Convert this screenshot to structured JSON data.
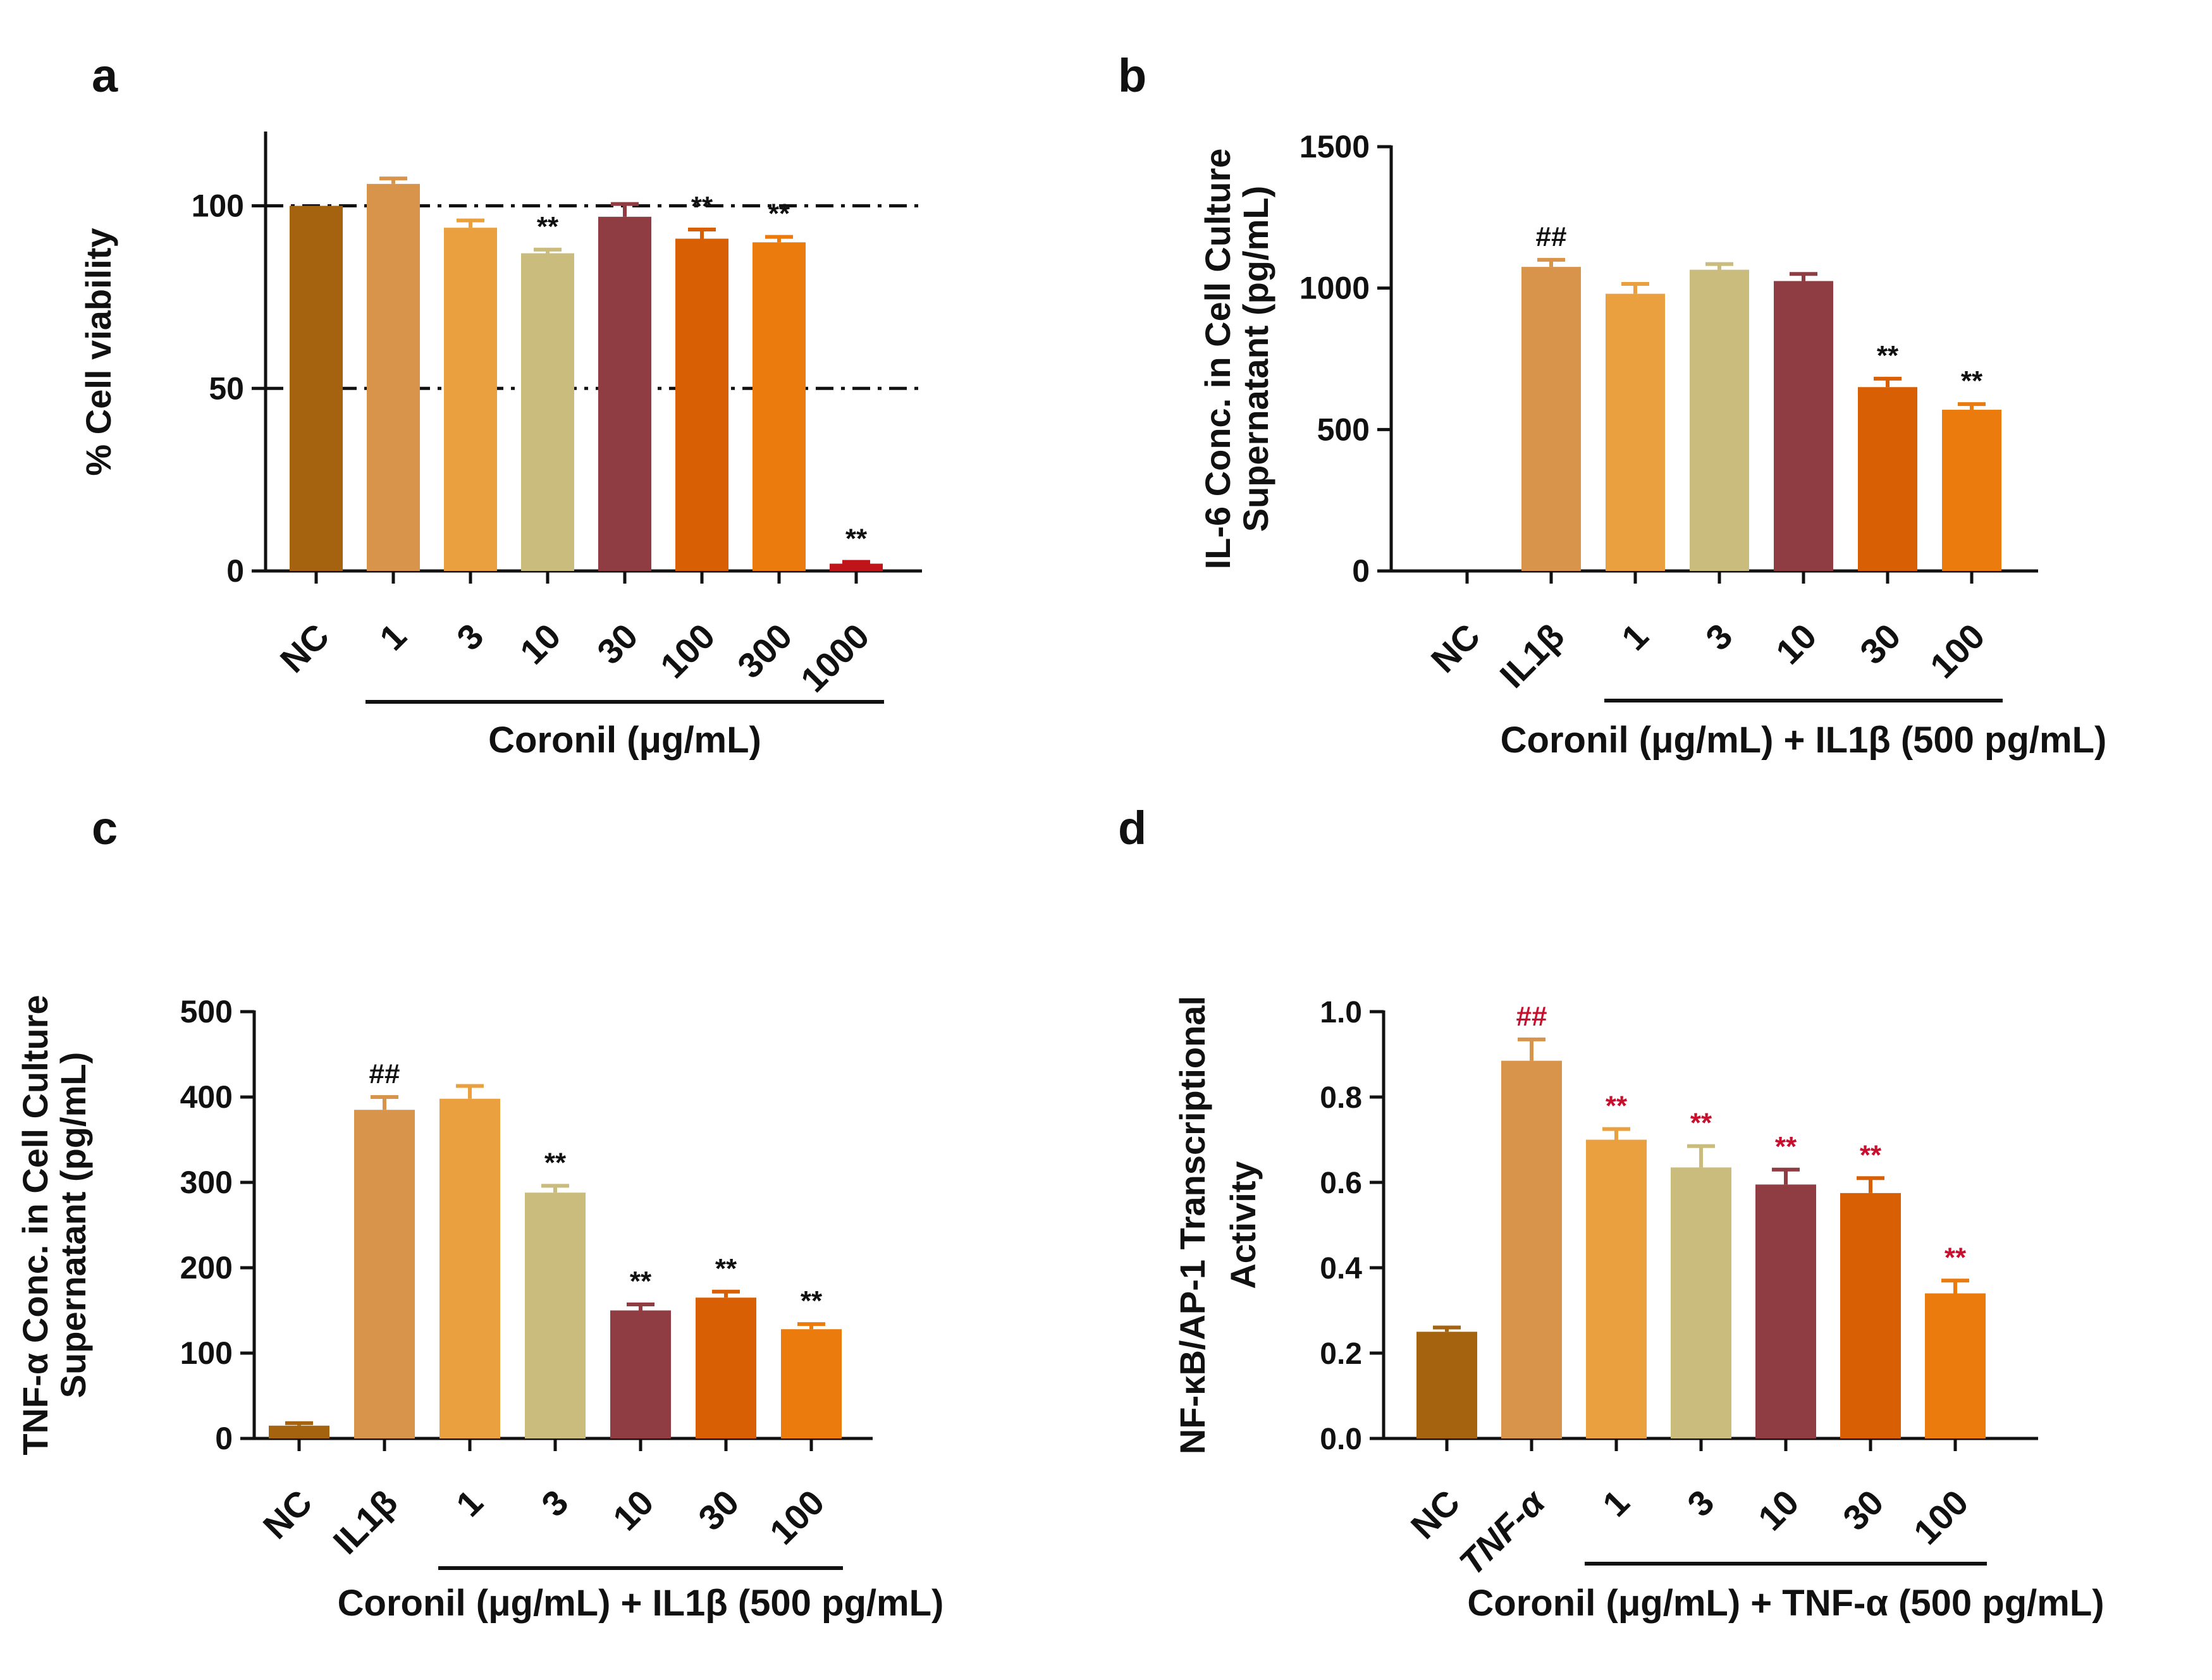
{
  "figure": {
    "colors": {
      "axis": "#111111",
      "sig_red": "#c8102e",
      "sig_black": "#111111"
    }
  },
  "chart_data": [
    {
      "panel_label": "a",
      "type": "bar",
      "categories": [
        "NC",
        "1",
        "3",
        "10",
        "30",
        "100",
        "300",
        "1000"
      ],
      "values": [
        100,
        106,
        94,
        87,
        97,
        91,
        90,
        2
      ],
      "errors": [
        0,
        1.5,
        2,
        1,
        3.5,
        2.5,
        1.5,
        0.5
      ],
      "colors": [
        "#a5630f",
        "#d8944a",
        "#eba040",
        "#c9bc7d",
        "#8f3c42",
        "#d95f04",
        "#ec7b0e",
        "#c0141b"
      ],
      "significance": [
        "",
        "",
        "",
        "**",
        "",
        "**",
        "**",
        "**"
      ],
      "sig_color": "black",
      "reference_lines": [
        100,
        50
      ],
      "ylabel": "%  Cell viability",
      "yticks": [
        0,
        50,
        100
      ],
      "ylim": [
        0,
        120
      ],
      "group_label": "Coronil (μg/mL)",
      "group_range": [
        1,
        7
      ]
    },
    {
      "panel_label": "b",
      "type": "bar",
      "categories": [
        "NC",
        "IL1β",
        "1",
        "3",
        "10",
        "30",
        "100"
      ],
      "values": [
        0,
        1075,
        980,
        1065,
        1025,
        650,
        570
      ],
      "errors": [
        0,
        25,
        35,
        20,
        25,
        30,
        20
      ],
      "colors": [
        "#a5630f",
        "#d8944a",
        "#eba040",
        "#c9bc7d",
        "#8f3c42",
        "#d95f04",
        "#ec7b0e"
      ],
      "significance": [
        "",
        "##",
        "",
        "",
        "",
        "**",
        "**"
      ],
      "sig_color": "black",
      "ylabel_line1": "IL-6 Conc. in Cell Culture",
      "ylabel_line2": "Supernatant (pg/mL)",
      "yticks": [
        0,
        500,
        1000,
        1500
      ],
      "ylim": [
        0,
        1500
      ],
      "group_label": "Coronil (μg/mL) + IL1β (500 pg/mL)",
      "group_range": [
        2,
        6
      ]
    },
    {
      "panel_label": "c",
      "type": "bar",
      "categories": [
        "NC",
        "IL1β",
        "1",
        "3",
        "10",
        "30",
        "100"
      ],
      "values": [
        15,
        385,
        398,
        288,
        150,
        165,
        128
      ],
      "errors": [
        3,
        15,
        15,
        8,
        7,
        7,
        6
      ],
      "colors": [
        "#a5630f",
        "#d8944a",
        "#eba040",
        "#c9bc7d",
        "#8f3c42",
        "#d95f04",
        "#ec7b0e"
      ],
      "significance": [
        "",
        "##",
        "",
        "**",
        "**",
        "**",
        "**"
      ],
      "sig_color": "black",
      "ylabel_line1": "TNF-α Conc. in Cell Culture",
      "ylabel_line2": "Supernatant (pg/mL)",
      "yticks": [
        0,
        100,
        200,
        300,
        400,
        500
      ],
      "ylim": [
        0,
        500
      ],
      "group_label": "Coronil (μg/mL) + IL1β (500 pg/mL)",
      "group_range": [
        2,
        6
      ]
    },
    {
      "panel_label": "d",
      "type": "bar",
      "categories": [
        "NC",
        "TNF-α",
        "1",
        "3",
        "10",
        "30",
        "100"
      ],
      "values": [
        0.25,
        0.885,
        0.7,
        0.635,
        0.595,
        0.575,
        0.34
      ],
      "errors": [
        0.01,
        0.05,
        0.025,
        0.05,
        0.035,
        0.035,
        0.03
      ],
      "colors": [
        "#a5630f",
        "#d8944a",
        "#eba040",
        "#c9bc7d",
        "#8f3c42",
        "#d95f04",
        "#ec7b0e"
      ],
      "significance": [
        "",
        "##",
        "**",
        "**",
        "**",
        "**",
        "**"
      ],
      "sig_color": "red",
      "ylabel_line1": "NF-κB/AP-1 Transcriptional",
      "ylabel_line2": "Activity",
      "yticks": [
        "0.0",
        "0.2",
        "0.4",
        "0.6",
        "0.8",
        "1.0"
      ],
      "ylim": [
        0,
        1.0
      ],
      "group_label": "Coronil (μg/mL) + TNF-α (500 pg/mL)",
      "group_range": [
        2,
        6
      ]
    }
  ]
}
